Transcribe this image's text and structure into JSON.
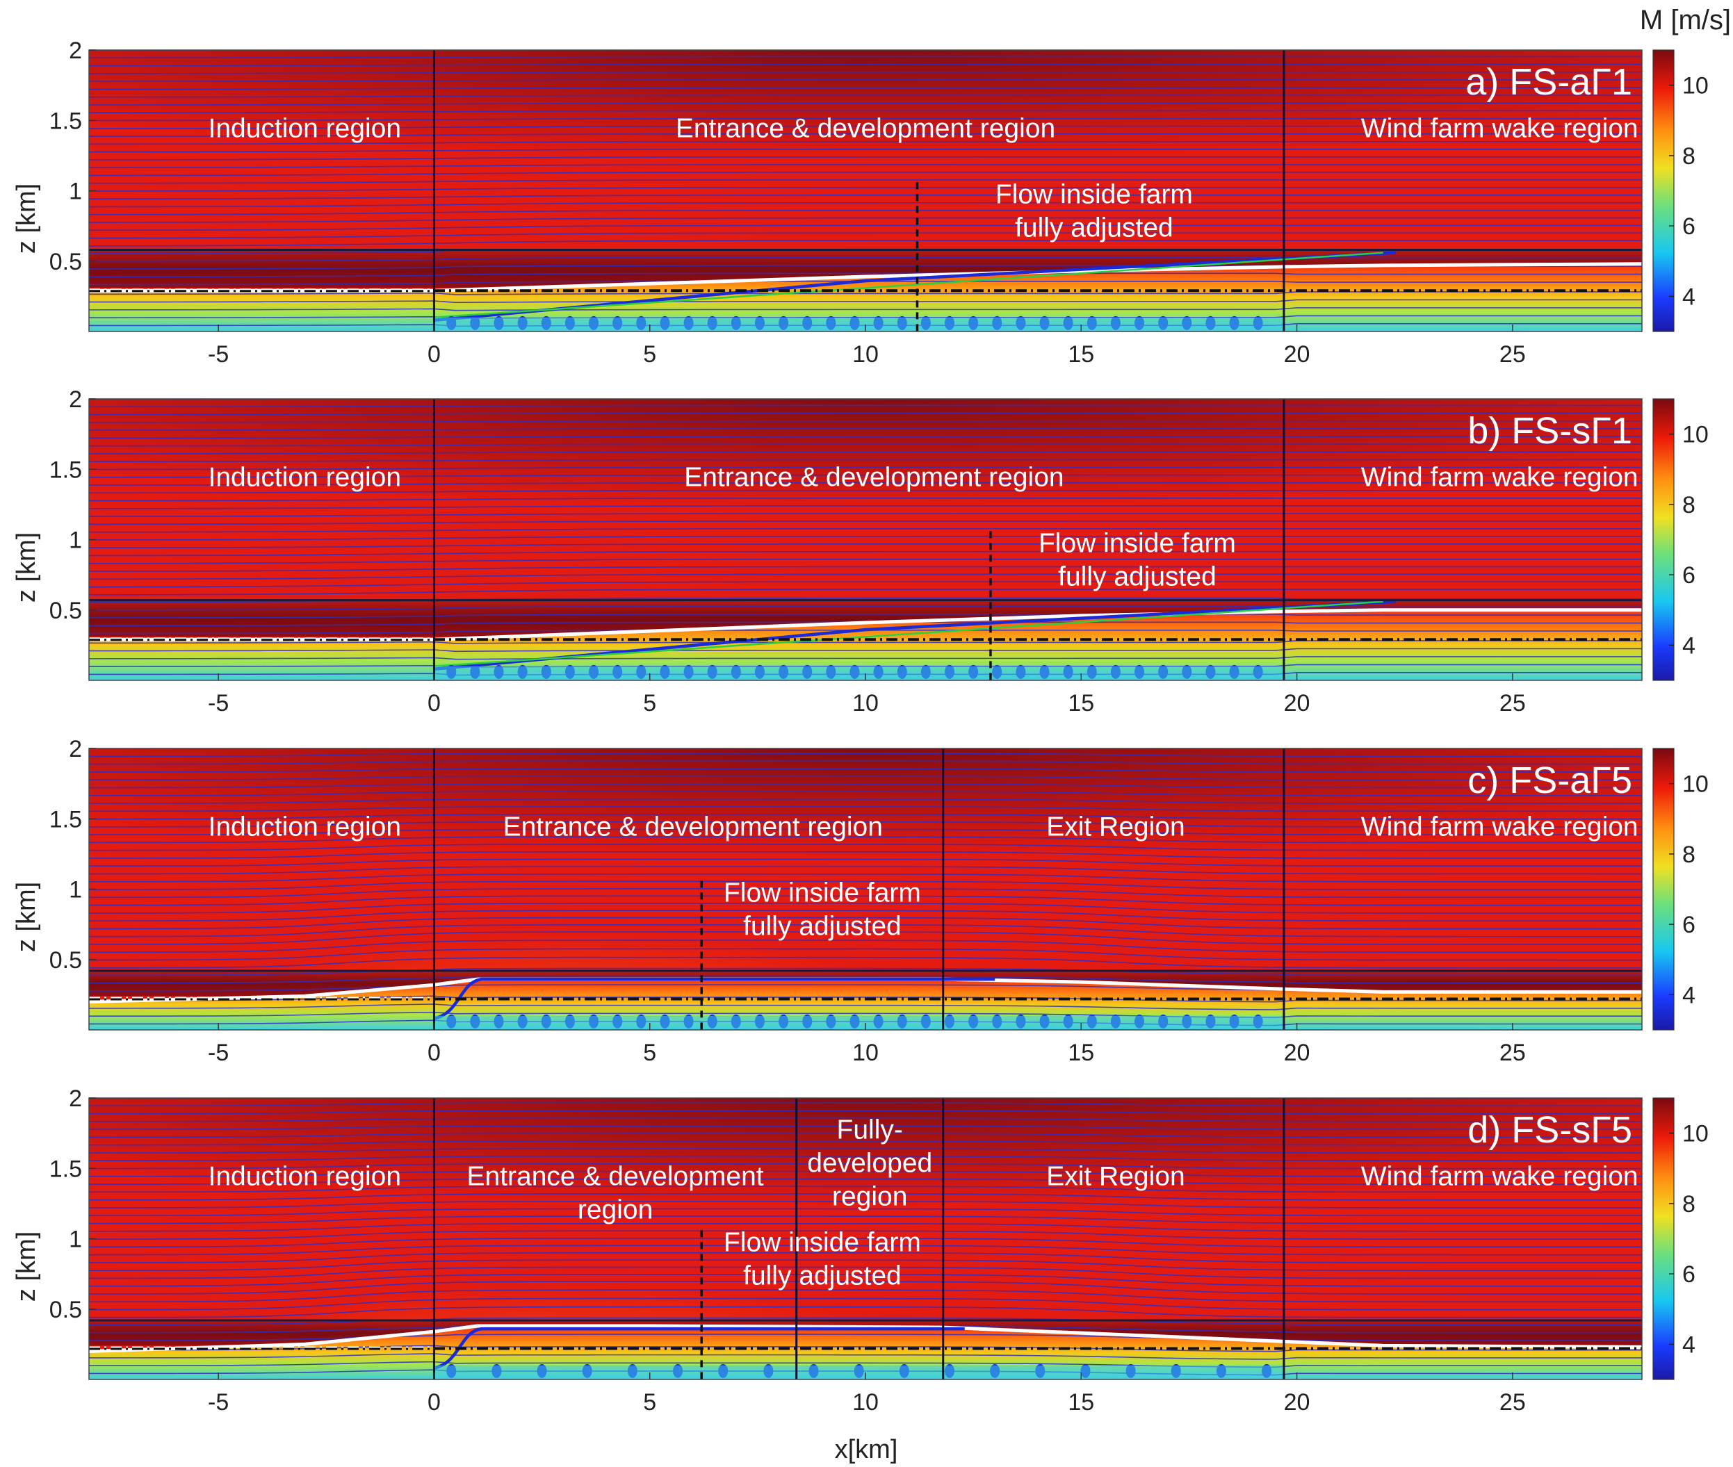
{
  "colorbar_label": "M [m/s]",
  "xlabel": "x[km]",
  "ylabel": "z [km]",
  "chart_data": [
    {
      "type": "heatmap",
      "title": "a) FS-aΓ1",
      "xlabel": "x[km]",
      "ylabel": "z [km]",
      "xlim": [
        -8,
        28
      ],
      "ylim": [
        0,
        2
      ],
      "xticks": [
        -5,
        0,
        5,
        10,
        15,
        20,
        25
      ],
      "yticks": [
        0.5,
        1,
        1.5,
        2
      ],
      "colorbar": {
        "label": "M [m/s]",
        "range": [
          3,
          11
        ],
        "ticks": [
          4,
          6,
          8,
          10
        ]
      },
      "farm_x": [
        0,
        19.7
      ],
      "region_boundaries_x": [
        0,
        19.7
      ],
      "adjusted_x": 11.2,
      "inversion_height": 0.58,
      "dashdot_height": 0.29,
      "regions": [
        {
          "label": "Induction region",
          "x": -3
        },
        {
          "label": "Entrance & development region",
          "x": 10
        },
        {
          "label": "Wind farm wake region",
          "x": 24.7
        }
      ],
      "annotation": [
        "Flow inside farm",
        "fully adjusted"
      ],
      "boundary_layer_white": {
        "x": [
          -8,
          0,
          5,
          10,
          15,
          19.7,
          22,
          28
        ],
        "z": [
          0.29,
          0.29,
          0.34,
          0.39,
          0.43,
          0.46,
          0.47,
          0.48
        ]
      }
    },
    {
      "type": "heatmap",
      "title": "b) FS-sΓ1",
      "xlabel": "x[km]",
      "ylabel": "z [km]",
      "xlim": [
        -8,
        28
      ],
      "ylim": [
        0,
        2
      ],
      "xticks": [
        -5,
        0,
        5,
        10,
        15,
        20,
        25
      ],
      "yticks": [
        0.5,
        1,
        1.5,
        2
      ],
      "colorbar": {
        "label": "M [m/s]",
        "range": [
          3,
          11
        ],
        "ticks": [
          4,
          6,
          8,
          10
        ]
      },
      "farm_x": [
        0,
        19.7
      ],
      "region_boundaries_x": [
        0,
        19.7
      ],
      "adjusted_x": 12.9,
      "inversion_height": 0.57,
      "dashdot_height": 0.29,
      "regions": [
        {
          "label": "Induction region",
          "x": -3
        },
        {
          "label": "Entrance & development region",
          "x": 10.2
        },
        {
          "label": "Wind farm wake region",
          "x": 24.7
        }
      ],
      "annotation": [
        "Flow inside farm",
        "fully adjusted"
      ],
      "boundary_layer_white": {
        "x": [
          -8,
          0,
          5,
          10,
          15,
          19.7,
          22,
          28
        ],
        "z": [
          0.29,
          0.29,
          0.35,
          0.41,
          0.46,
          0.49,
          0.5,
          0.5
        ]
      }
    },
    {
      "type": "heatmap",
      "title": "c) FS-aΓ5",
      "xlabel": "x[km]",
      "ylabel": "z [km]",
      "xlim": [
        -8,
        28
      ],
      "ylim": [
        0,
        2
      ],
      "xticks": [
        -5,
        0,
        5,
        10,
        15,
        20,
        25
      ],
      "yticks": [
        0.5,
        1,
        1.5,
        2
      ],
      "colorbar": {
        "label": "M [m/s]",
        "range": [
          3,
          11
        ],
        "ticks": [
          4,
          6,
          8,
          10
        ]
      },
      "farm_x": [
        0,
        19.7
      ],
      "region_boundaries_x": [
        0,
        11.8,
        19.7
      ],
      "adjusted_x": 6.2,
      "inversion_height": 0.42,
      "dashdot_height": 0.22,
      "regions": [
        {
          "label": "Induction region",
          "x": -3
        },
        {
          "label": "Entrance & development region",
          "x": 6
        },
        {
          "label": "Exit Region",
          "x": 15.8
        },
        {
          "label": "Wind farm wake region",
          "x": 24.7
        }
      ],
      "annotation": [
        "Flow inside farm",
        "fully adjusted"
      ],
      "boundary_layer_white": {
        "x": [
          -8,
          -3,
          0,
          1,
          5,
          11.8,
          15,
          19.7,
          22,
          28
        ],
        "z": [
          0.2,
          0.24,
          0.32,
          0.36,
          0.36,
          0.36,
          0.34,
          0.29,
          0.27,
          0.27
        ]
      }
    },
    {
      "type": "heatmap",
      "title": "d) FS-sΓ5",
      "xlabel": "x[km]",
      "ylabel": "z [km]",
      "xlim": [
        -8,
        28
      ],
      "ylim": [
        0,
        2
      ],
      "xticks": [
        -5,
        0,
        5,
        10,
        15,
        20,
        25
      ],
      "yticks": [
        0.5,
        1,
        1.5,
        2
      ],
      "colorbar": {
        "label": "M [m/s]",
        "range": [
          3,
          11
        ],
        "ticks": [
          4,
          6,
          8,
          10
        ]
      },
      "farm_x": [
        0,
        19.7
      ],
      "region_boundaries_x": [
        0,
        8.4,
        11.8,
        19.7
      ],
      "adjusted_x": 6.2,
      "inversion_height": 0.42,
      "dashdot_height": 0.22,
      "regions": [
        {
          "label": "Induction region",
          "x": -3
        },
        {
          "label": [
            "Entrance & development",
            "region"
          ],
          "x": 4.2
        },
        {
          "label": [
            "Fully-",
            "developed",
            "region"
          ],
          "x": 10.1
        },
        {
          "label": "Exit Region",
          "x": 15.8
        },
        {
          "label": "Wind farm wake region",
          "x": 24.7
        }
      ],
      "annotation": [
        "Flow inside farm",
        "fully adjusted"
      ],
      "boundary_layer_white": {
        "x": [
          -8,
          -3,
          0,
          1,
          5,
          11.8,
          15,
          19.7,
          22,
          28
        ],
        "z": [
          0.2,
          0.25,
          0.34,
          0.38,
          0.38,
          0.37,
          0.33,
          0.27,
          0.24,
          0.23
        ]
      }
    }
  ]
}
